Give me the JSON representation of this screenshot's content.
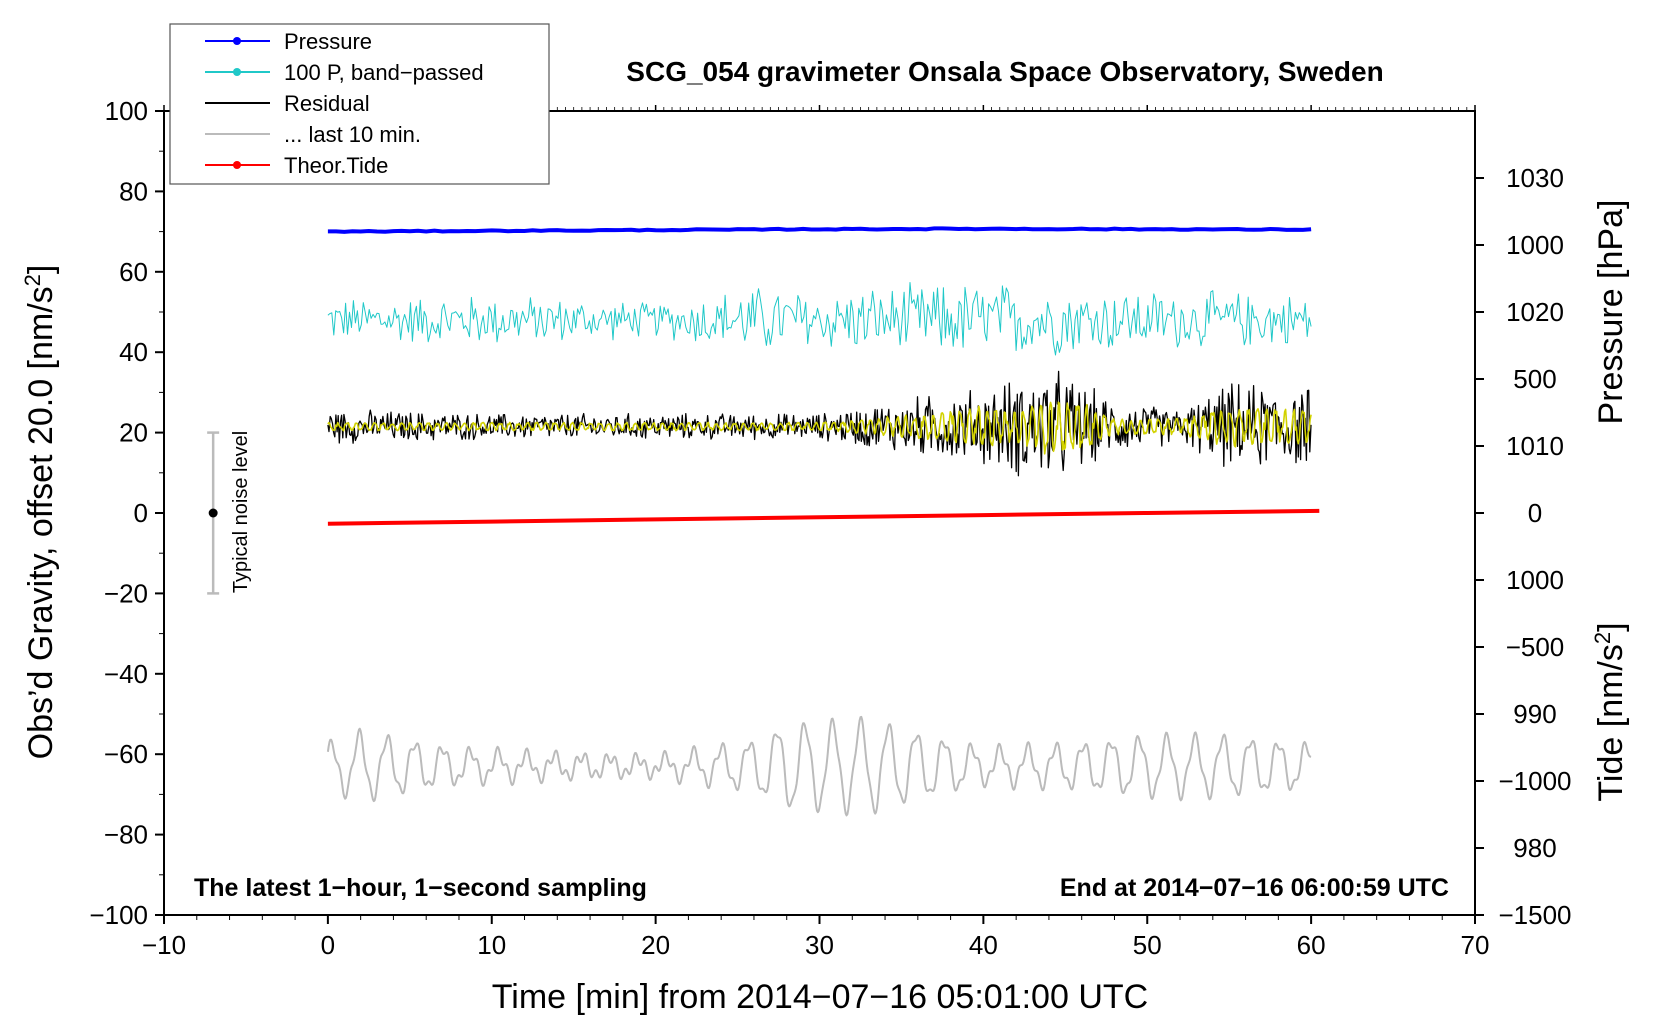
{
  "chart_data": {
    "type": "line",
    "title": "SCG_054 gravimeter Onsala Space Observatory, Sweden",
    "xlabel": "Time [min] from 2014−07−16 05:01:00 UTC",
    "ylabel_left": "Obs’d Gravity, offset 20.0 [nm/s",
    "ylabel_left_sup": "2",
    "ylabel_left_end": "]",
    "ylabel_right_pressure": "Pressure [hPa]",
    "ylabel_right_tide": "Tide [nm/s",
    "ylabel_right_tide_sup": "2",
    "ylabel_right_tide_end": "]",
    "xlim": [
      -10,
      70
    ],
    "ylim_left": [
      -100,
      100
    ],
    "pressure_range": [
      975,
      1035
    ],
    "tide_range": [
      -1500,
      1500
    ],
    "x_ticks": [
      -10,
      0,
      10,
      20,
      30,
      40,
      50,
      60,
      70
    ],
    "x_tick_labels": [
      "−10",
      "0",
      "10",
      "20",
      "30",
      "40",
      "50",
      "60",
      "70"
    ],
    "y_left_ticks": [
      -100,
      -80,
      -60,
      -40,
      -20,
      0,
      20,
      40,
      60,
      80,
      100
    ],
    "y_left_tick_labels": [
      "−100",
      "−80",
      "−60",
      "−40",
      "−20",
      "0",
      "20",
      "40",
      "60",
      "80",
      "100"
    ],
    "pressure_ticks": [
      980,
      990,
      1000,
      1010,
      1020,
      1030
    ],
    "pressure_tick_labels": [
      "980",
      "990",
      "1000",
      "1010",
      "1020",
      "1030"
    ],
    "tide_ticks": [
      -1500,
      -1000,
      -500,
      0,
      500,
      1000
    ],
    "tide_tick_labels": [
      "−1500",
      "−1000",
      "−500",
      "0",
      "500",
      "1000"
    ],
    "legend": [
      {
        "label": "Pressure",
        "color": "#0000ff",
        "marker": true
      },
      {
        "label": "100 P, band−passed",
        "color": "#20c8c8",
        "marker": true
      },
      {
        "label": "Residual",
        "color": "#000000",
        "marker": false
      },
      {
        "label": "... last 10 min.",
        "color": "#bbbbbb",
        "marker": false
      },
      {
        "label": "Theor.Tide",
        "color": "#ff0000",
        "marker": true
      }
    ],
    "series": [
      {
        "name": "Pressure",
        "color": "#0000ff",
        "axis": "left",
        "x": [
          0,
          10,
          20,
          30,
          40,
          50,
          60
        ],
        "y": [
          70.0,
          70.2,
          70.4,
          70.6,
          70.7,
          70.6,
          70.5
        ]
      },
      {
        "name": "100 P, band−passed",
        "color": "#20c8c8",
        "axis": "left",
        "x_range": [
          0,
          60
        ],
        "baseline": 48,
        "amplitude_x": [
          0,
          10,
          20,
          26,
          30,
          40,
          50,
          60
        ],
        "amplitude_y": [
          5,
          6,
          4,
          8,
          7,
          9,
          7,
          6
        ]
      },
      {
        "name": "Residual",
        "color": "#000000",
        "axis": "left",
        "x_range": [
          0,
          60
        ],
        "baseline": 21.5,
        "amplitude_x": [
          0,
          10,
          20,
          30,
          36,
          40,
          44,
          45,
          48,
          52,
          55,
          60
        ],
        "amplitude_y": [
          4,
          3,
          3,
          3,
          7,
          9,
          14,
          12,
          6,
          4,
          10,
          9
        ]
      },
      {
        "name": "Yellow overlay",
        "color": "#d2d200",
        "axis": "left",
        "x_range": [
          0,
          60
        ],
        "baseline": 21.5,
        "amplitude_x": [
          0,
          30,
          36,
          40,
          42,
          44,
          46,
          48,
          52,
          55,
          60
        ],
        "amplitude_y": [
          1,
          1,
          3,
          5,
          4,
          7,
          6,
          2,
          2,
          5,
          4
        ]
      },
      {
        "name": "... last 10 min.",
        "color": "#bbbbbb",
        "axis": "left",
        "x_range": [
          0,
          60
        ],
        "baseline": -63,
        "amplitude_x": [
          0,
          2,
          5,
          8,
          12,
          20,
          26,
          28,
          33,
          36,
          40,
          45,
          50,
          55,
          60
        ],
        "amplitude_y": [
          5,
          8,
          6,
          4,
          3,
          2,
          6,
          10,
          11,
          8,
          4,
          5,
          7,
          7,
          5
        ]
      },
      {
        "name": "Theor.Tide",
        "color": "#ff0000",
        "axis": "tide",
        "x": [
          0,
          10,
          20,
          30,
          40,
          50,
          60.5
        ],
        "y": [
          -40,
          -32,
          -24,
          -16,
          -8,
          0,
          8
        ]
      }
    ],
    "noise_bar": {
      "label": "Typical noise level",
      "x": -7,
      "y_low": -20,
      "y_high": 20,
      "y_center": 0
    },
    "annotations": {
      "bottom_left": "The latest 1−hour, 1−second sampling",
      "bottom_right": "End at 2014−07−16 06:00:59 UTC"
    }
  }
}
